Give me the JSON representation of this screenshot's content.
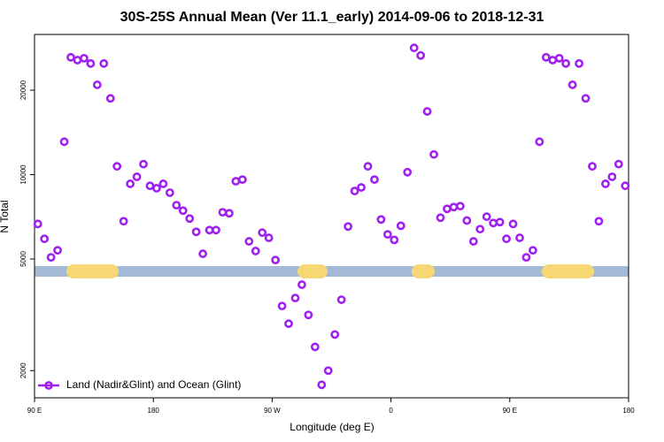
{
  "chart_data": {
    "type": "scatter",
    "title": "30S-25S Annual Mean (Ver 11.1_early)   2014-09-06 to 2018-12-31",
    "xlabel": "Longitude (deg E)",
    "ylabel": "N Total",
    "series": [
      {
        "name": "Land (Nadir&Glint) and Ocean (Glint)",
        "color": "#a020f0",
        "x": [
          92.5,
          97.5,
          102.5,
          107.5,
          112.5,
          117.5,
          122.5,
          127.5,
          132.5,
          137.5,
          142.5,
          147.5,
          152.5,
          157.5,
          162.5,
          167.5,
          172.5,
          177.5,
          182.5,
          187.5,
          192.5,
          197.5,
          202.5,
          207.5,
          212.5,
          217.5,
          222.5,
          227.5,
          232.5,
          237.5,
          242.5,
          247.5,
          252.5,
          257.5,
          262.5,
          267.5,
          272.5,
          277.5,
          282.5,
          287.5,
          292.5,
          297.5,
          302.5,
          307.5,
          312.5,
          317.5,
          322.5,
          327.5,
          332.5,
          337.5,
          342.5,
          347.5,
          352.5,
          357.5,
          362.5,
          367.5,
          372.5,
          377.5,
          382.5,
          387.5,
          392.5,
          397.5,
          402.5,
          407.5,
          412.5,
          417.5,
          422.5,
          427.5,
          432.5,
          437.5,
          442.5,
          447.5,
          452.5,
          457.5,
          462.5,
          467.5,
          472.5,
          477.5,
          482.5,
          487.5,
          492.5,
          497.5,
          502.5,
          507.5,
          512.5,
          517.5,
          522.5,
          527.5,
          532.5,
          537.5
        ],
        "values": [
          6670,
          5900,
          5070,
          5370,
          13100,
          26200,
          25600,
          26000,
          24900,
          20900,
          24900,
          18700,
          10700,
          6820,
          9270,
          9820,
          10900,
          9120,
          8940,
          9270,
          8620,
          7780,
          7440,
          6970,
          6250,
          5220,
          6340,
          6340,
          7340,
          7280,
          9470,
          9600,
          5780,
          5340,
          6210,
          5950,
          4960,
          3400,
          2940,
          3630,
          4050,
          3160,
          2430,
          1780,
          2000,
          2690,
          3580,
          6530,
          8740,
          9000,
          10700,
          9600,
          6920,
          6120,
          5850,
          6570,
          10200,
          28300,
          26600,
          16800,
          11800,
          7020,
          7550,
          7660,
          7720,
          6860,
          5780,
          6390,
          7080,
          6720,
          6770,
          5900,
          6670,
          5950,
          5070,
          5370,
          13100,
          26200,
          25600,
          26000,
          24900,
          20900,
          24900,
          18700,
          10700,
          6820,
          9270,
          9820,
          10900,
          9120
        ]
      }
    ],
    "xlim": [
      90,
      540
    ],
    "xticks": [
      {
        "value": 90,
        "label": "90 E"
      },
      {
        "value": 180,
        "label": "180"
      },
      {
        "value": 270,
        "label": "90 W"
      },
      {
        "value": 360,
        "label": "0"
      },
      {
        "value": 450,
        "label": "90 E"
      },
      {
        "value": 540,
        "label": "180"
      }
    ],
    "ylim": [
      1600,
      31600
    ],
    "yticks": [
      2000,
      5000,
      10000,
      20000
    ],
    "log_y": true,
    "legend": "lower left"
  }
}
